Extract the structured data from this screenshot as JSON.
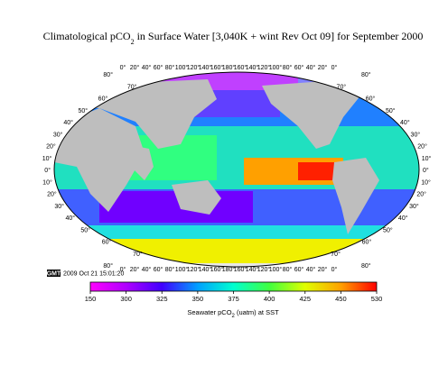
{
  "title": {
    "pre": "Climatological pCO",
    "sub": "2",
    "post": " in Surface Water [3,040K + wint Rev Oct 09] for September 2000"
  },
  "longitude_labels": [
    "0°",
    "20°",
    "40°",
    "60°",
    "80°",
    "100°",
    "120°",
    "140°",
    "160°",
    "180°",
    "160°",
    "140°",
    "120°",
    "100°",
    "80°",
    "60°",
    "40°",
    "20°",
    "0°"
  ],
  "latitude_labels": [
    "80°",
    "70°",
    "60°",
    "50°",
    "40°",
    "30°",
    "20°",
    "10°",
    "0°",
    "10°",
    "20°",
    "30°",
    "40°",
    "50°",
    "60°",
    "70°",
    "80°"
  ],
  "stamp": {
    "logo": "GMT",
    "time": "2009 Oct 21 15:01:20"
  },
  "colorbar": {
    "ticks": [
      150,
      300,
      325,
      350,
      375,
      400,
      425,
      450,
      530
    ],
    "colors": [
      "#ff00ff",
      "#b000ff",
      "#4000ff",
      "#00a0ff",
      "#00ffd0",
      "#40ff40",
      "#e0ff00",
      "#ffa000",
      "#ff0000"
    ],
    "label": {
      "pre": "Seawater  pCO",
      "sub": "2",
      "post": " (uatm) at SST"
    }
  }
}
